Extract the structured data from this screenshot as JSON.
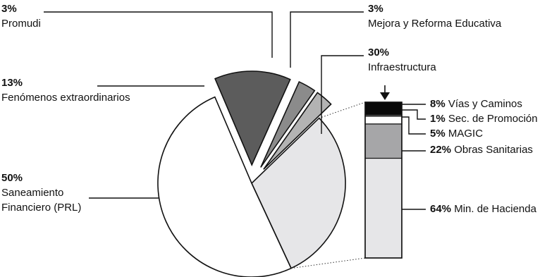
{
  "chart_data": [
    {
      "type": "pie",
      "categories": [
        "Infraestructura",
        "Saneamiento Financiero (PRL)",
        "Fenómenos extraordinarios",
        "Promudi",
        "Mejora y Reforma Educativa"
      ],
      "values": [
        30,
        50,
        13,
        3,
        3
      ],
      "value_labels": [
        "30%",
        "50%",
        "13%",
        "3%",
        "3%"
      ],
      "label_lines": [
        [
          "Infraestructura"
        ],
        [
          "Saneamiento",
          "Financiero (PRL)"
        ],
        [
          "Fenómenos extraordinarios"
        ],
        [
          "Promudi"
        ],
        [
          "Mejora y Reforma Educativa"
        ]
      ],
      "colors": [
        "#e6e6e8",
        "#ffffff",
        "#5c5c5c",
        "#8b8b8b",
        "#b3b3b3"
      ],
      "exploded": [
        false,
        false,
        true,
        true,
        true
      ]
    },
    {
      "type": "bar",
      "stacked": true,
      "breakdown_of": "Infraestructura",
      "categories": [
        "Vías y Caminos",
        "Sec. de Promoción",
        "MAGIC",
        "Obras Sanitarias",
        "Min. de Hacienda"
      ],
      "values": [
        8,
        1,
        5,
        22,
        64
      ],
      "value_labels": [
        "8%",
        "1%",
        "5%",
        "22%",
        "64%"
      ],
      "colors": [
        "#0a0a0a",
        "#666666",
        "#ffffff",
        "#a6a6a8",
        "#e6e6e8"
      ]
    }
  ]
}
